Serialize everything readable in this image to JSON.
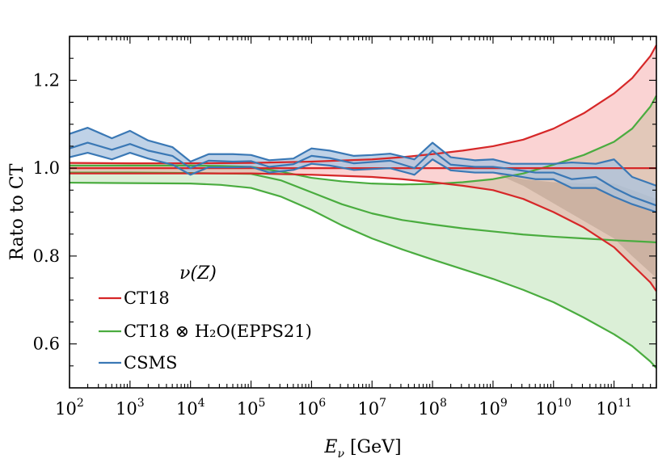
{
  "chart_data": {
    "type": "line",
    "title": "",
    "xlabel": "E_ν [GeV]",
    "xlabel_parts": {
      "main": "E",
      "sub": "ν",
      "unit": " [GeV]"
    },
    "ylabel": "Rato to CT",
    "xscale": "log",
    "x_exponent_range": [
      2,
      11.7
    ],
    "ylim": [
      0.5,
      1.3
    ],
    "x_ticks": [
      {
        "base": "10",
        "exp": "2",
        "value": 100
      },
      {
        "base": "10",
        "exp": "3",
        "value": 1000
      },
      {
        "base": "10",
        "exp": "4",
        "value": 10000
      },
      {
        "base": "10",
        "exp": "5",
        "value": 100000
      },
      {
        "base": "10",
        "exp": "6",
        "value": 1000000
      },
      {
        "base": "10",
        "exp": "7",
        "value": 10000000
      },
      {
        "base": "10",
        "exp": "8",
        "value": 100000000
      },
      {
        "base": "10",
        "exp": "9",
        "value": 1000000000
      },
      {
        "base": "10",
        "exp": "10",
        "value": 10000000000
      },
      {
        "base": "10",
        "exp": "11",
        "value": 100000000000
      }
    ],
    "y_ticks": [
      {
        "value": 0.6,
        "label": "0.6"
      },
      {
        "value": 0.8,
        "label": "0.8"
      },
      {
        "value": 1.0,
        "label": "1.0"
      },
      {
        "value": 1.2,
        "label": "1.2"
      }
    ],
    "grid": false,
    "legend": {
      "title": "ν(Z)",
      "placement": "bottom-left",
      "entries": [
        {
          "label": "CT18",
          "color": "#d62728"
        },
        {
          "label": "CT18 ⊗ H₂O(EPPS21)",
          "color": "#4aac3f"
        },
        {
          "label": "CSMS",
          "color": "#3a78b5"
        }
      ]
    },
    "series": [
      {
        "name": "CT18",
        "color": "#d62728",
        "fill": "#f08080",
        "log10_x": [
          2,
          3,
          4,
          5,
          6,
          7,
          7.5,
          8,
          8.5,
          9,
          9.5,
          10,
          10.5,
          11,
          11.3,
          11.6,
          11.7
        ],
        "central": [
          1.0,
          1.0,
          1.0,
          1.0,
          1.0,
          1.0,
          1.0,
          1.0,
          1.0,
          1.0,
          1.0,
          1.0,
          1.0,
          1.0,
          1.0,
          1.0,
          1.0
        ],
        "upper": [
          1.012,
          1.011,
          1.011,
          1.012,
          1.015,
          1.02,
          1.025,
          1.032,
          1.04,
          1.05,
          1.065,
          1.09,
          1.125,
          1.17,
          1.205,
          1.255,
          1.28
        ],
        "lower": [
          0.988,
          0.988,
          0.988,
          0.988,
          0.985,
          0.98,
          0.975,
          0.968,
          0.96,
          0.95,
          0.93,
          0.9,
          0.865,
          0.82,
          0.78,
          0.74,
          0.72
        ]
      },
      {
        "name": "CT18 ⊗ H₂O(EPPS21)",
        "color": "#4aac3f",
        "fill": "#98d08d",
        "log10_x": [
          2,
          3,
          4,
          4.5,
          5,
          5.5,
          6,
          6.5,
          7,
          7.5,
          8,
          8.5,
          9,
          9.5,
          10,
          10.5,
          11,
          11.3,
          11.6,
          11.7
        ],
        "central": [
          0.99,
          0.99,
          0.989,
          0.988,
          0.987,
          0.972,
          0.945,
          0.918,
          0.897,
          0.882,
          0.872,
          0.863,
          0.856,
          0.849,
          0.844,
          0.84,
          0.836,
          0.834,
          0.832,
          0.831
        ],
        "upper": [
          1.006,
          1.006,
          1.006,
          1.005,
          1.003,
          0.992,
          0.978,
          0.97,
          0.965,
          0.963,
          0.964,
          0.968,
          0.975,
          0.988,
          1.008,
          1.03,
          1.06,
          1.09,
          1.14,
          1.165
        ],
        "lower": [
          0.967,
          0.966,
          0.965,
          0.962,
          0.955,
          0.935,
          0.905,
          0.87,
          0.84,
          0.815,
          0.792,
          0.77,
          0.748,
          0.723,
          0.695,
          0.66,
          0.622,
          0.595,
          0.56,
          0.545
        ]
      },
      {
        "name": "CSMS",
        "color": "#3a78b5",
        "fill": "#a9c3df",
        "log10_x": [
          2,
          2.3,
          2.7,
          3,
          3.3,
          3.7,
          4,
          4.3,
          4.7,
          5,
          5.3,
          5.7,
          6,
          6.3,
          6.7,
          7,
          7.3,
          7.7,
          8,
          8.3,
          8.7,
          9,
          9.3,
          9.7,
          10,
          10.3,
          10.7,
          11,
          11.3,
          11.7
        ],
        "central": [
          1.045,
          1.058,
          1.042,
          1.055,
          1.04,
          1.028,
          1.0,
          1.017,
          1.015,
          1.016,
          1.003,
          1.009,
          1.028,
          1.023,
          1.011,
          1.014,
          1.017,
          1.0,
          1.04,
          1.008,
          1.003,
          1.003,
          0.998,
          0.99,
          0.99,
          0.975,
          0.98,
          0.955,
          0.935,
          0.915
        ],
        "upper": [
          1.078,
          1.092,
          1.068,
          1.085,
          1.063,
          1.048,
          1.015,
          1.032,
          1.032,
          1.03,
          1.018,
          1.022,
          1.045,
          1.04,
          1.028,
          1.03,
          1.033,
          1.02,
          1.058,
          1.025,
          1.018,
          1.02,
          1.01,
          1.01,
          1.01,
          1.013,
          1.01,
          1.02,
          0.98,
          0.96
        ],
        "lower": [
          1.025,
          1.035,
          1.02,
          1.035,
          1.022,
          1.008,
          0.985,
          1.002,
          1.002,
          1.003,
          0.99,
          0.996,
          1.01,
          1.006,
          0.996,
          0.998,
          1.0,
          0.985,
          1.02,
          0.995,
          0.99,
          0.99,
          0.984,
          0.975,
          0.975,
          0.955,
          0.955,
          0.935,
          0.918,
          0.9
        ]
      }
    ],
    "shaded_region": {
      "color": "#888888",
      "log10_x": [
        9,
        9.5,
        10,
        10.5,
        11,
        11.3,
        11.7
      ],
      "upper": [
        0.99,
        0.975,
        0.968,
        0.965,
        0.965,
        0.95,
        0.93
      ],
      "lower": [
        0.99,
        0.96,
        0.92,
        0.88,
        0.84,
        0.8,
        0.75
      ]
    }
  }
}
